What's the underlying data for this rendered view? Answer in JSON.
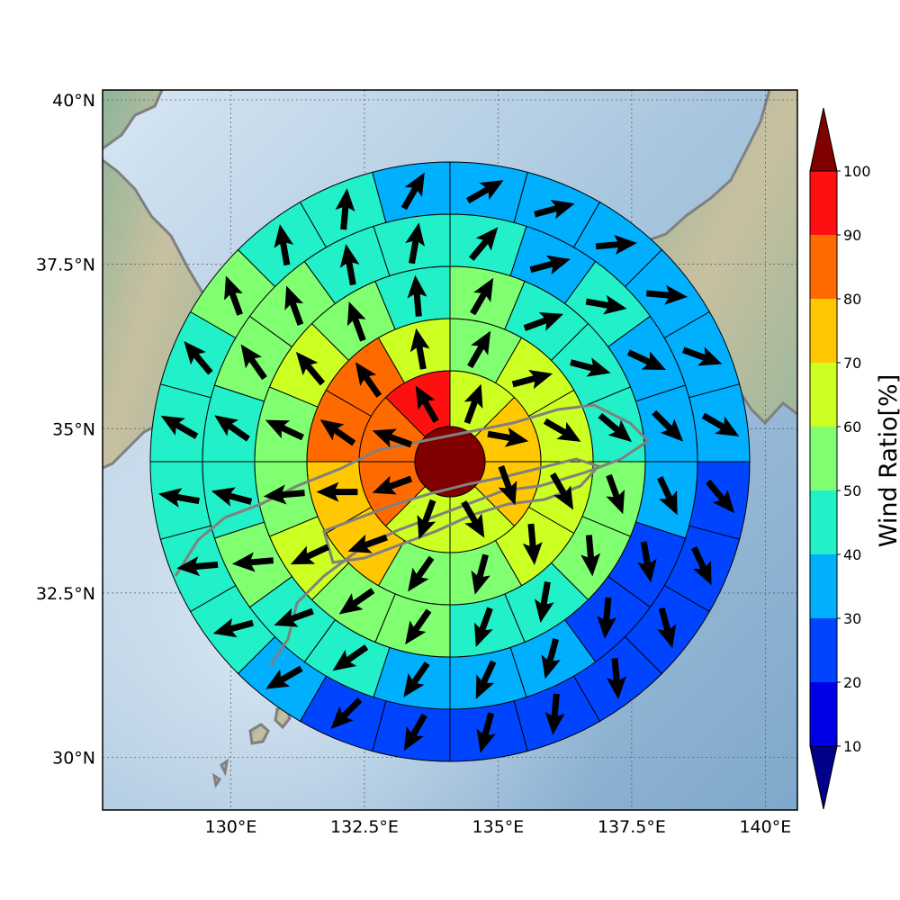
{
  "map": {
    "lon_range": [
      127.6,
      140.6
    ],
    "lat_range": [
      29.2,
      40.15
    ],
    "lon_ticks": [
      {
        "value": 130,
        "label": "130°E"
      },
      {
        "value": 132.5,
        "label": "132.5°E"
      },
      {
        "value": 135,
        "label": "135°E"
      },
      {
        "value": 137.5,
        "label": "137.5°E"
      },
      {
        "value": 140,
        "label": "140°E"
      }
    ],
    "lat_ticks": [
      {
        "value": 30,
        "label": "30°N"
      },
      {
        "value": 32.5,
        "label": "32.5°N"
      },
      {
        "value": 35,
        "label": "35°N"
      },
      {
        "value": 37.5,
        "label": "37.5°N"
      },
      {
        "value": 40,
        "label": "40°N"
      }
    ],
    "grid": true,
    "coastline_color": "#808080",
    "center_cell_value": 100
  },
  "colorbar": {
    "label": "Wind Ratio[%]",
    "ticks": [
      "10",
      "20",
      "30",
      "40",
      "50",
      "60",
      "70",
      "80",
      "90",
      "100"
    ],
    "bands": [
      {
        "from": 10,
        "to": 20,
        "color": "#0000e6"
      },
      {
        "from": 20,
        "to": 30,
        "color": "#0044ff"
      },
      {
        "from": 30,
        "to": 40,
        "color": "#00b0ff"
      },
      {
        "from": 40,
        "to": 50,
        "color": "#22f0c8"
      },
      {
        "from": 50,
        "to": 60,
        "color": "#80ff70"
      },
      {
        "from": 60,
        "to": 70,
        "color": "#ccff22"
      },
      {
        "from": 70,
        "to": 80,
        "color": "#ffc800"
      },
      {
        "from": 80,
        "to": 90,
        "color": "#ff6a00"
      },
      {
        "from": 90,
        "to": 100,
        "color": "#ff1010"
      }
    ],
    "under_color": "#00008b",
    "over_color": "#800000"
  },
  "chart_data": {
    "type": "heatmap",
    "title": "",
    "xlabel": "",
    "ylabel": "",
    "colorbar_label": "Wind Ratio[%]",
    "cell_value_scale": [
      10,
      100
    ],
    "rings": [
      {
        "ring": 1,
        "sectors": 8,
        "values": [
          65,
          75,
          75,
          65,
          65,
          85,
          85,
          95
        ]
      },
      {
        "ring": 2,
        "sectors": 12,
        "values": [
          55,
          65,
          65,
          65,
          65,
          55,
          55,
          75,
          75,
          85,
          85,
          65
        ]
      },
      {
        "ring": 3,
        "sectors": 16,
        "values": [
          55,
          45,
          45,
          45,
          55,
          55,
          45,
          45,
          55,
          55,
          65,
          55,
          55,
          65,
          55,
          45
        ]
      },
      {
        "ring": 4,
        "sectors": 20,
        "values": [
          45,
          35,
          45,
          35,
          35,
          35,
          25,
          25,
          35,
          35,
          35,
          45,
          45,
          55,
          45,
          45,
          55,
          55,
          45,
          45
        ]
      },
      {
        "ring": 5,
        "sectors": 24,
        "values": [
          35,
          35,
          35,
          35,
          35,
          35,
          25,
          25,
          25,
          25,
          25,
          25,
          25,
          25,
          35,
          45,
          45,
          45,
          45,
          45,
          55,
          45,
          45,
          35
        ]
      }
    ],
    "vectors": [
      {
        "ring": 1,
        "direction_deg": [
          20,
          100,
          160,
          150,
          200,
          250,
          290,
          330
        ]
      },
      {
        "ring": 2,
        "direction_deg": [
          30,
          75,
          120,
          150,
          175,
          195,
          215,
          250,
          270,
          305,
          325,
          350
        ]
      },
      {
        "ring": 3,
        "direction_deg": [
          30,
          70,
          105,
          130,
          160,
          175,
          190,
          200,
          215,
          235,
          245,
          265,
          295,
          320,
          340,
          355
        ]
      },
      {
        "ring": 4,
        "direction_deg": [
          40,
          75,
          100,
          115,
          135,
          155,
          170,
          185,
          195,
          205,
          215,
          235,
          250,
          265,
          285,
          305,
          325,
          340,
          350,
          10
        ]
      },
      {
        "ring": 5,
        "direction_deg": [
          60,
          75,
          85,
          95,
          110,
          120,
          140,
          155,
          165,
          175,
          185,
          195,
          210,
          225,
          240,
          255,
          265,
          280,
          300,
          320,
          340,
          350,
          5,
          30
        ]
      }
    ]
  }
}
